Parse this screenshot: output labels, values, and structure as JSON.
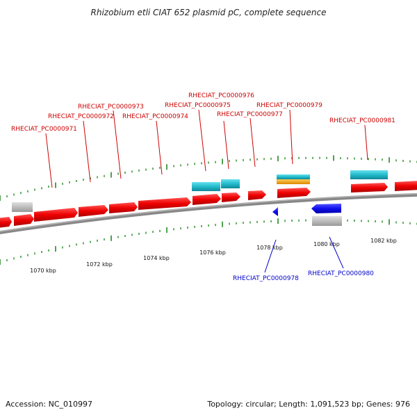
{
  "title": "Rhizobium etli CIAT 652 plasmid pC, complete sequence",
  "footer": {
    "accession": "Accession: NC_010997",
    "summary": "Topology: circular; Length: 1,091,523 bp; Genes: 976"
  },
  "colors": {
    "forward_gene": "#ff1a1a",
    "reverse_gene": "#1a1aff",
    "gc_content": "#22bbcc",
    "gc_skew": "#ff9900",
    "other_feature": "#b3b3b3",
    "backbone": "#808080",
    "tick": "#228b22",
    "forward_label": "#cc0000",
    "reverse_label": "#0000cc"
  },
  "scale_ticks": [
    {
      "label": "1070 kbp",
      "kbp": 1070
    },
    {
      "label": "1072 kbp",
      "kbp": 1072
    },
    {
      "label": "1074 kbp",
      "kbp": 1074
    },
    {
      "label": "1076 kbp",
      "kbp": 1076
    },
    {
      "label": "1078 kbp",
      "kbp": 1078
    },
    {
      "label": "1080 kbp",
      "kbp": 1080
    },
    {
      "label": "1082 kbp",
      "kbp": 1082
    }
  ],
  "gene_labels": [
    {
      "text": "RHECIAT_PC0000971",
      "strand": "forward"
    },
    {
      "text": "RHECIAT_PC0000972",
      "strand": "forward"
    },
    {
      "text": "RHECIAT_PC0000973",
      "strand": "forward"
    },
    {
      "text": "RHECIAT_PC0000974",
      "strand": "forward"
    },
    {
      "text": "RHECIAT_PC0000975",
      "strand": "forward"
    },
    {
      "text": "RHECIAT_PC0000976",
      "strand": "forward"
    },
    {
      "text": "RHECIAT_PC0000977",
      "strand": "forward"
    },
    {
      "text": "RHECIAT_PC0000979",
      "strand": "forward"
    },
    {
      "text": "RHECIAT_PC0000981",
      "strand": "forward"
    },
    {
      "text": "RHECIAT_PC0000978",
      "strand": "reverse"
    },
    {
      "text": "RHECIAT_PC0000980",
      "strand": "reverse"
    }
  ]
}
